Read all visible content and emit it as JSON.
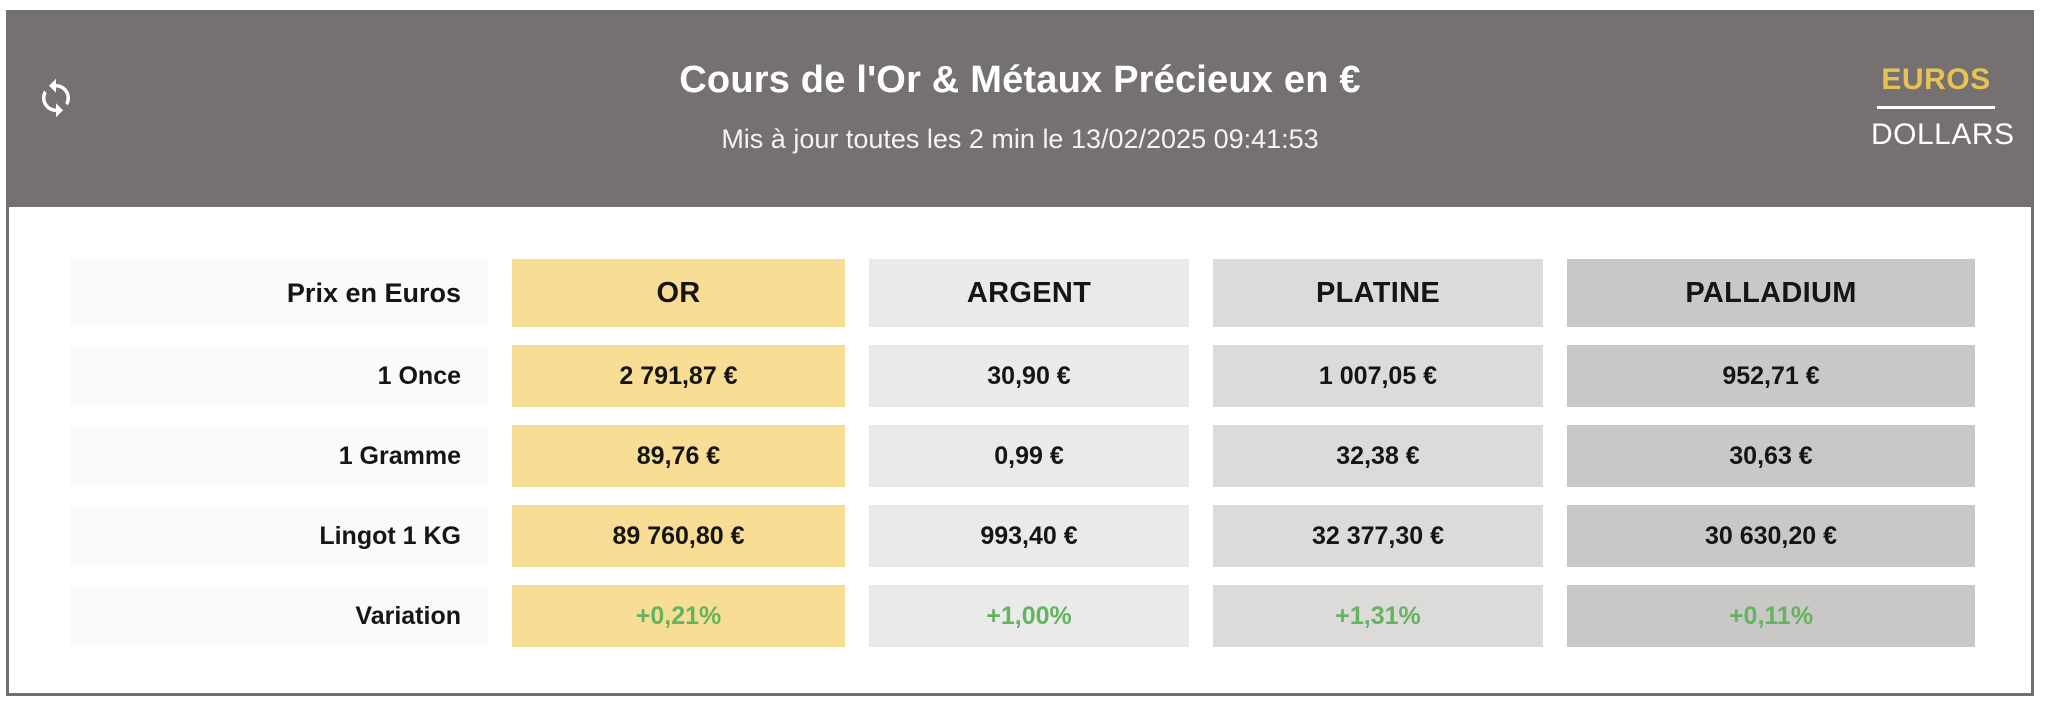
{
  "header": {
    "title": "Cours de l'Or & Métaux Précieux en €",
    "subtitle": "Mis à jour toutes les 2 min le 13/02/2025 09:41:53",
    "currency": {
      "active": "EUROS",
      "inactive": "DOLLARS"
    }
  },
  "table": {
    "corner_label": "Prix en Euros",
    "columns": [
      {
        "id": "or",
        "label": "OR",
        "bg": "#F8DD95"
      },
      {
        "id": "argent",
        "label": "ARGENT",
        "bg": "#EBEAEA"
      },
      {
        "id": "platine",
        "label": "PLATINE",
        "bg": "#DCDBD9"
      },
      {
        "id": "palladium",
        "label": "PALLADIUM",
        "bg": "#CAC8C6"
      }
    ],
    "rows": [
      {
        "id": "once",
        "label": "1 Once",
        "type": "price",
        "values": [
          "2 791,87 €",
          "30,90 €",
          "1 007,05 €",
          "952,71 €"
        ]
      },
      {
        "id": "gramme",
        "label": "1 Gramme",
        "type": "price",
        "values": [
          "89,76 €",
          "0,99 €",
          "32,38 €",
          "30,63 €"
        ]
      },
      {
        "id": "lingot",
        "label": "Lingot 1 KG",
        "type": "price",
        "values": [
          "89 760,80 €",
          "993,40 €",
          "32 377,30 €",
          "30 630,20 €"
        ]
      },
      {
        "id": "variation",
        "label": "Variation",
        "type": "variation",
        "values": [
          "+0,21%",
          "+1,00%",
          "+1,31%",
          "+0,11%"
        ]
      }
    ]
  },
  "colors": {
    "header_bg": "#747170",
    "accent_gold": "#E9C254",
    "variation_green": "#64B45F",
    "label_bg": "#FAFAF9"
  }
}
